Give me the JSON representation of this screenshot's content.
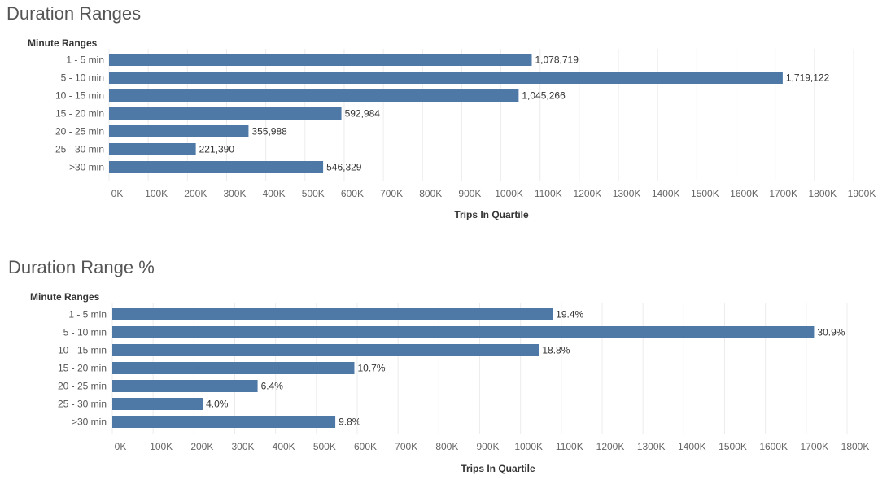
{
  "chart_data": [
    {
      "type": "bar",
      "orientation": "horizontal",
      "title": "Duration Ranges",
      "row_header": "Minute Ranges",
      "xlabel": "Trips In Quartile",
      "categories": [
        "1 - 5 min",
        "5 - 10 min",
        "10 - 15 min",
        "15 - 20 min",
        "20 - 25 min",
        "25 - 30 min",
        ">30 min"
      ],
      "values": [
        1078719,
        1719122,
        1045266,
        592984,
        355988,
        221390,
        546329
      ],
      "data_labels": [
        "1,078,719",
        "1,719,122",
        "1,045,266",
        "592,984",
        "355,988",
        "221,390",
        "546,329"
      ],
      "xlim": [
        0,
        1900000
      ],
      "x_ticks": [
        "0K",
        "100K",
        "200K",
        "300K",
        "400K",
        "500K",
        "600K",
        "700K",
        "800K",
        "900K",
        "1000K",
        "1100K",
        "1200K",
        "1300K",
        "1400K",
        "1500K",
        "1600K",
        "1700K",
        "1800K",
        "1900K"
      ],
      "grid": "vertical",
      "bar_color": "#4e79a7"
    },
    {
      "type": "bar",
      "orientation": "horizontal",
      "title": "Duration Range %",
      "row_header": "Minute Ranges",
      "xlabel": "Trips In Quartile",
      "categories": [
        "1 - 5 min",
        "5 - 10 min",
        "10 - 15 min",
        "15 - 20 min",
        "20 - 25 min",
        "25 - 30 min",
        ">30 min"
      ],
      "values": [
        1078719,
        1719122,
        1045266,
        592984,
        355988,
        221390,
        546329
      ],
      "data_labels": [
        "19.4%",
        "30.9%",
        "18.8%",
        "10.7%",
        "6.4%",
        "4.0%",
        "9.8%"
      ],
      "xlim": [
        0,
        1800000
      ],
      "x_ticks": [
        "0K",
        "100K",
        "200K",
        "300K",
        "400K",
        "500K",
        "600K",
        "700K",
        "800K",
        "900K",
        "1000K",
        "1100K",
        "1200K",
        "1300K",
        "1400K",
        "1500K",
        "1600K",
        "1700K",
        "1800K"
      ],
      "grid": "vertical",
      "bar_color": "#4e79a7"
    }
  ]
}
